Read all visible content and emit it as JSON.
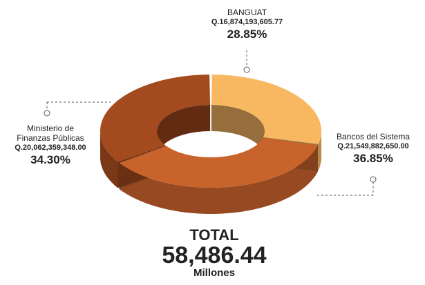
{
  "chart_data": {
    "type": "donut",
    "categories": [
      "BANGUAT",
      "Bancos del Sistema",
      "Ministerio de Finanzas Públicas"
    ],
    "amount_labels": [
      "Q.16,874,193,605.77",
      "Q.21,549,882,650.00",
      "Q.20,062,359,348.00"
    ],
    "values": [
      28.85,
      36.85,
      34.3
    ],
    "value_labels": [
      "28.85%",
      "36.85%",
      "34.30%"
    ],
    "colors": [
      "#f8b862",
      "#c9632c",
      "#a34a1f"
    ],
    "total_title": "TOTAL",
    "total": {
      "value": 58486.44,
      "label": "58,486.44"
    },
    "total_unit": "Millones"
  }
}
